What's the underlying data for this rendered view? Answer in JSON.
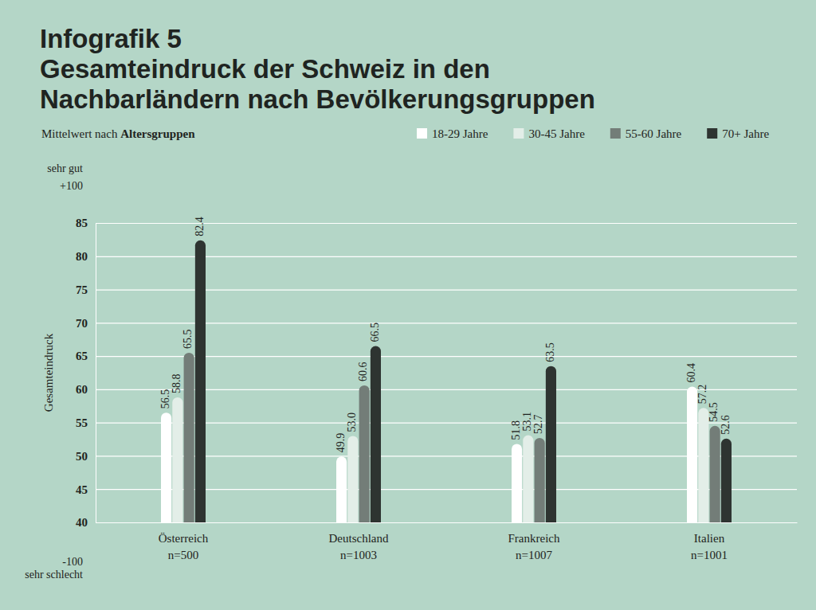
{
  "chart_data": {
    "type": "bar",
    "title": "Infografik 5\nGesamteindruck der Schweiz in den\nNachbarländern nach Bevölkerungsgruppen",
    "subtitle": "Mittelwert nach Altersgruppen",
    "y_label": "Gesamteindruck",
    "annotations": [
      "sehr gut",
      "+100",
      "-100",
      "sehr schlecht"
    ],
    "categories": [
      "Österreich\nn=500",
      "Deutschland\nn=1003",
      "Frankreich\nn=1007",
      "Italien\nn=1001"
    ],
    "series": [
      {
        "name": "18-29 Jahre",
        "color": "#ffffff",
        "values": [
          56.5,
          49.9,
          51.8,
          60.4
        ]
      },
      {
        "name": "30-45 Jahre",
        "color": "#e3eee8",
        "values": [
          58.8,
          53.0,
          53.1,
          57.2
        ],
        "value_labels": [
          "58.8",
          "53.0",
          "53.1",
          "57.2"
        ]
      },
      {
        "name": "55-60 Jahre",
        "color": "#737d78",
        "values": [
          65.5,
          60.6,
          52.7,
          54.5
        ]
      },
      {
        "name": "70+ Jahre",
        "color": "#2e3431",
        "values": [
          82.4,
          66.5,
          63.5,
          52.6
        ]
      }
    ],
    "ylim": [
      40,
      85
    ],
    "yticks": [
      40,
      45,
      50,
      55,
      60,
      65,
      70,
      75,
      80,
      85
    ],
    "grid": true,
    "legend": "top-right",
    "data_labels": true
  }
}
